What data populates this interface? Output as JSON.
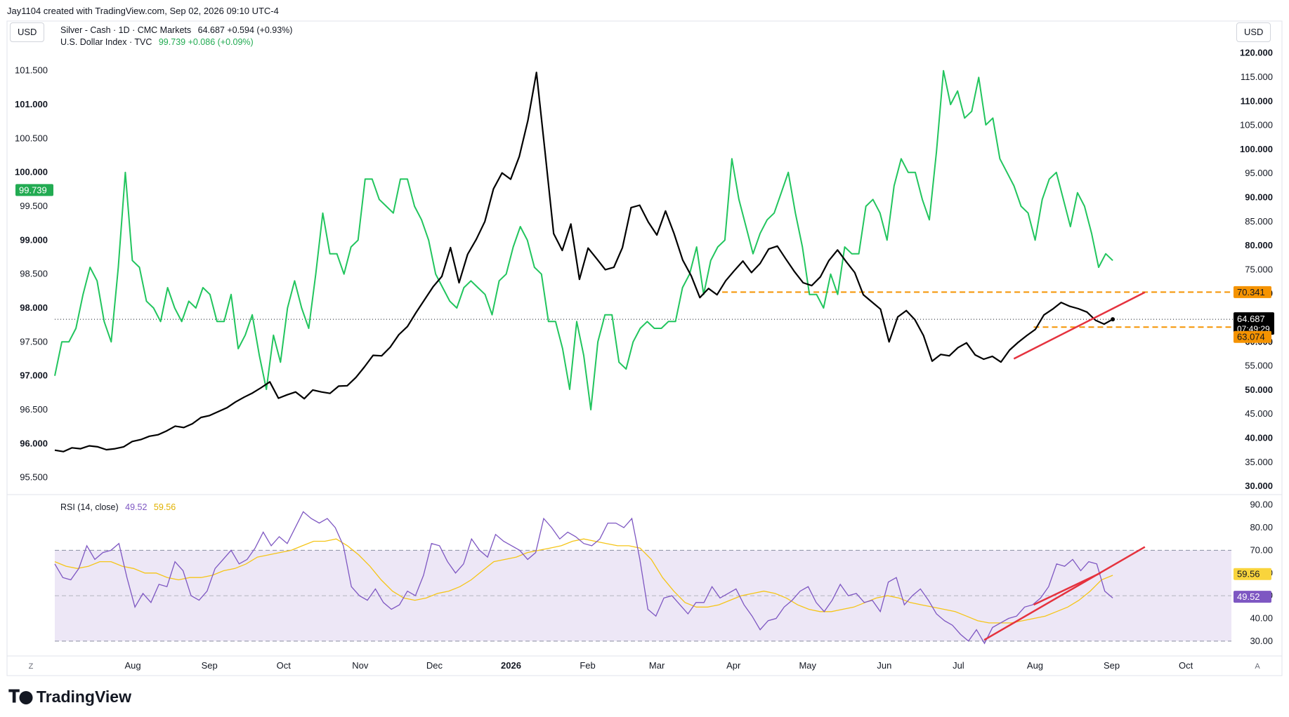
{
  "header": {
    "attribution": "Jay1104 created with TradingView.com, Sep 02, 2026 09:10 UTC-4"
  },
  "currency_left": "USD",
  "currency_right": "USD",
  "legend": {
    "silver_label": "Silver - Cash · 1D · CMC Markets",
    "silver_values": "64.687  +0.594 (+0.93%)",
    "dxy_label": "U.S. Dollar Index · TVC",
    "dxy_values": "99.739  +0.086 (+0.09%)",
    "rsi_label": "RSI (14, close)",
    "rsi_value": "49.52",
    "rsi_ma_value": "59.56"
  },
  "axes": {
    "left_ticks": [
      "101.500",
      "101.000",
      "100.500",
      "100.000",
      "99.500",
      "99.000",
      "98.500",
      "98.000",
      "97.500",
      "97.000",
      "96.500",
      "96.000",
      "95.500"
    ],
    "right_ticks": [
      "120.000",
      "115.000",
      "110.000",
      "105.000",
      "100.000",
      "95.000",
      "90.000",
      "85.000",
      "80.000",
      "75.000",
      "70.000",
      "60.000",
      "55.000",
      "50.000",
      "45.000",
      "40.000",
      "35.000",
      "30.000"
    ],
    "rsi_ticks": [
      "90.00",
      "80.00",
      "70.00",
      "60.00",
      "50.00",
      "40.00",
      "30.00"
    ],
    "time_ticks": [
      "Aug",
      "Sep",
      "Oct",
      "Nov",
      "Dec",
      "2026",
      "Feb",
      "Mar",
      "Apr",
      "May",
      "Jun",
      "Jul",
      "Aug",
      "Sep",
      "Oct"
    ],
    "corner_left": "Z",
    "corner_right": "A"
  },
  "badges": {
    "dxy_price": "99.739",
    "silver_price": "64.687",
    "countdown": "07:49:29",
    "level_high": "70.341",
    "level_low": "63.074",
    "rsi_ma": "59.56",
    "rsi": "49.52"
  },
  "brand": {
    "name": "TradingView"
  },
  "colors": {
    "dxy": "#22c55e",
    "silver": "#000000",
    "rsi": "#7e57c2",
    "rsi_ma": "#f5c518",
    "trend": "#e5323e",
    "level": "#f59300",
    "rsi_band": "#ede7f6",
    "dxy_badge": "#22ab52"
  },
  "chart_data": [
    {
      "type": "line",
      "title": "",
      "series": [
        {
          "name": "U.S. Dollar Index · TVC",
          "axis": "left",
          "values": [
            97.0,
            97.5,
            97.5,
            97.7,
            98.2,
            98.6,
            98.4,
            97.8,
            97.5,
            98.6,
            100.0,
            98.7,
            98.6,
            98.1,
            98.0,
            97.8,
            98.3,
            98.0,
            97.8,
            98.1,
            98.0,
            98.3,
            98.2,
            97.8,
            97.8,
            98.2,
            97.4,
            97.6,
            97.9,
            97.3,
            96.8,
            97.6,
            97.2,
            98.0,
            98.4,
            98.0,
            97.7,
            98.5,
            99.4,
            98.8,
            98.8,
            98.5,
            98.9,
            99.0,
            99.9,
            99.9,
            99.6,
            99.5,
            99.4,
            99.9,
            99.9,
            99.5,
            99.3,
            99.0,
            98.5,
            98.3,
            98.1,
            98.0,
            98.3,
            98.4,
            98.3,
            98.2,
            97.9,
            98.4,
            98.5,
            98.9,
            99.2,
            99.0,
            98.6,
            98.5,
            97.8,
            97.8,
            97.4,
            96.8,
            97.8,
            97.3,
            96.5,
            97.5,
            97.9,
            97.9,
            97.2,
            97.1,
            97.5,
            97.7,
            97.8,
            97.7,
            97.7,
            97.8,
            97.8,
            98.3,
            98.5,
            98.9,
            98.2,
            98.7,
            98.9,
            99.0,
            100.2,
            99.6,
            99.2,
            98.8,
            99.1,
            99.3,
            99.4,
            99.7,
            100.0,
            99.4,
            98.9,
            98.2,
            98.2,
            98.0,
            98.5,
            98.2,
            98.9,
            98.8,
            98.8,
            99.5,
            99.6,
            99.4,
            99.0,
            99.8,
            100.2,
            100.0,
            100.0,
            99.6,
            99.3,
            100.3,
            101.5,
            101.0,
            101.2,
            100.8,
            100.9,
            101.4,
            100.7,
            100.8,
            100.2,
            100.0,
            99.8,
            99.5,
            99.4,
            99.0,
            99.6,
            99.9,
            100.0,
            99.6,
            99.2,
            99.7,
            99.5,
            99.1,
            98.6,
            98.8,
            98.7
          ],
          "x_start": "2025-07-01",
          "x_end": "2026-09-02"
        },
        {
          "name": "Silver - Cash · 1D · CMC Markets",
          "axis": "right",
          "values": [
            37.5,
            37.2,
            38.0,
            37.8,
            38.4,
            38.2,
            37.6,
            37.8,
            38.2,
            39.3,
            39.7,
            40.4,
            40.7,
            41.5,
            42.5,
            42.2,
            43.0,
            44.3,
            44.7,
            45.5,
            46.3,
            47.5,
            48.5,
            49.4,
            50.5,
            51.7,
            48.3,
            49.0,
            49.6,
            48.2,
            50.0,
            49.6,
            49.3,
            50.8,
            50.9,
            52.6,
            54.8,
            57.2,
            57.1,
            58.9,
            61.5,
            63.2,
            66.1,
            68.8,
            71.5,
            73.6,
            79.6,
            72.3,
            78.2,
            81.3,
            85.0,
            91.8,
            95.1,
            93.8,
            98.5,
            106.0,
            116.0,
            99.5,
            82.5,
            79.0,
            84.5,
            73.0,
            79.5,
            77.3,
            75.0,
            75.5,
            79.6,
            87.9,
            88.4,
            84.9,
            82.2,
            87.2,
            82.5,
            77.0,
            73.7,
            69.2,
            71.1,
            69.8,
            72.7,
            74.8,
            76.8,
            74.4,
            76.3,
            79.3,
            79.9,
            77.2,
            74.6,
            72.3,
            71.7,
            73.5,
            76.9,
            79.1,
            76.7,
            74.4,
            69.8,
            68.3,
            66.8,
            60.0,
            65.2,
            66.5,
            64.6,
            61.3,
            56.0,
            57.4,
            57.1,
            58.8,
            59.8,
            57.3,
            56.4,
            57.0,
            55.8,
            58.3,
            59.9,
            61.3,
            62.6,
            65.6,
            66.8,
            68.2,
            67.4,
            66.9,
            66.2,
            64.5,
            63.7,
            64.7
          ],
          "x_start": "2025-07-01",
          "x_end": "2026-09-02"
        }
      ],
      "price_levels": [
        70.341,
        63.074
      ],
      "trendline": {
        "from": [
          "2026-07-24",
          56.5
        ],
        "to": [
          "2026-09-15",
          70.3
        ]
      },
      "left_ylim": [
        95.3,
        101.9
      ],
      "right_ylim": [
        29.0,
        122.0
      ]
    },
    {
      "type": "line",
      "title": "RSI (14, close)",
      "series": [
        {
          "name": "RSI (14, close)",
          "values": [
            64,
            58,
            57,
            62,
            72,
            66,
            69,
            70,
            73,
            58,
            45,
            51,
            47,
            55,
            54,
            65,
            61,
            50,
            48,
            52,
            62,
            66,
            70,
            64,
            66,
            71,
            78,
            72,
            76,
            73,
            80,
            87,
            84,
            82,
            84,
            80,
            72,
            54,
            50,
            48,
            53,
            47,
            44,
            46,
            52,
            50,
            59,
            73,
            72,
            65,
            60,
            64,
            75,
            70,
            67,
            77,
            74,
            72,
            70,
            66,
            69,
            84,
            80,
            75,
            78,
            76,
            73,
            72,
            75,
            82,
            82,
            80,
            84,
            66,
            44,
            41,
            49,
            50,
            46,
            42,
            47,
            47,
            54,
            49,
            51,
            53,
            46,
            41,
            35,
            39,
            40,
            45,
            48,
            52,
            54,
            47,
            43,
            48,
            55,
            50,
            51,
            47,
            48,
            43,
            56,
            58,
            46,
            50,
            53,
            48,
            42,
            39,
            37,
            33,
            30,
            35,
            29,
            36,
            38,
            40,
            41,
            45,
            46,
            49,
            54,
            64,
            63,
            66,
            61,
            65,
            64,
            52,
            49
          ],
          "x_start": "2025-07-01",
          "x_end": "2026-09-02"
        },
        {
          "name": "RSI-based MA",
          "values": [
            65,
            63,
            62,
            63,
            65,
            65,
            63,
            62,
            60,
            60,
            58,
            57,
            58,
            58,
            59,
            61,
            62,
            64,
            67,
            68,
            69,
            70,
            72,
            74,
            74,
            75,
            72,
            68,
            63,
            57,
            52,
            49,
            48,
            49,
            51,
            52,
            54,
            57,
            61,
            65,
            66,
            67,
            69,
            70,
            71,
            72,
            74,
            75,
            74,
            73,
            72,
            72,
            71,
            66,
            58,
            52,
            47,
            45,
            45,
            46,
            48,
            50,
            51,
            52,
            51,
            49,
            46,
            44,
            43,
            43,
            44,
            45,
            47,
            49,
            50,
            49,
            47,
            46,
            45,
            44,
            43,
            41,
            39,
            38,
            38,
            38,
            39,
            40,
            41,
            43,
            45,
            48,
            52,
            57,
            59
          ],
          "x_start": "2025-07-01",
          "x_end": "2026-09-02"
        }
      ],
      "bands": [
        30,
        50,
        70
      ],
      "trendlines": [
        {
          "from": [
            "2026-07-12",
            30.5
          ],
          "to": [
            "2026-09-15",
            71.5
          ]
        },
        {
          "from": [
            "2026-08-01",
            46.0
          ],
          "to": [
            "2026-08-28",
            60.0
          ]
        }
      ],
      "ylim": [
        25,
        93
      ]
    }
  ]
}
